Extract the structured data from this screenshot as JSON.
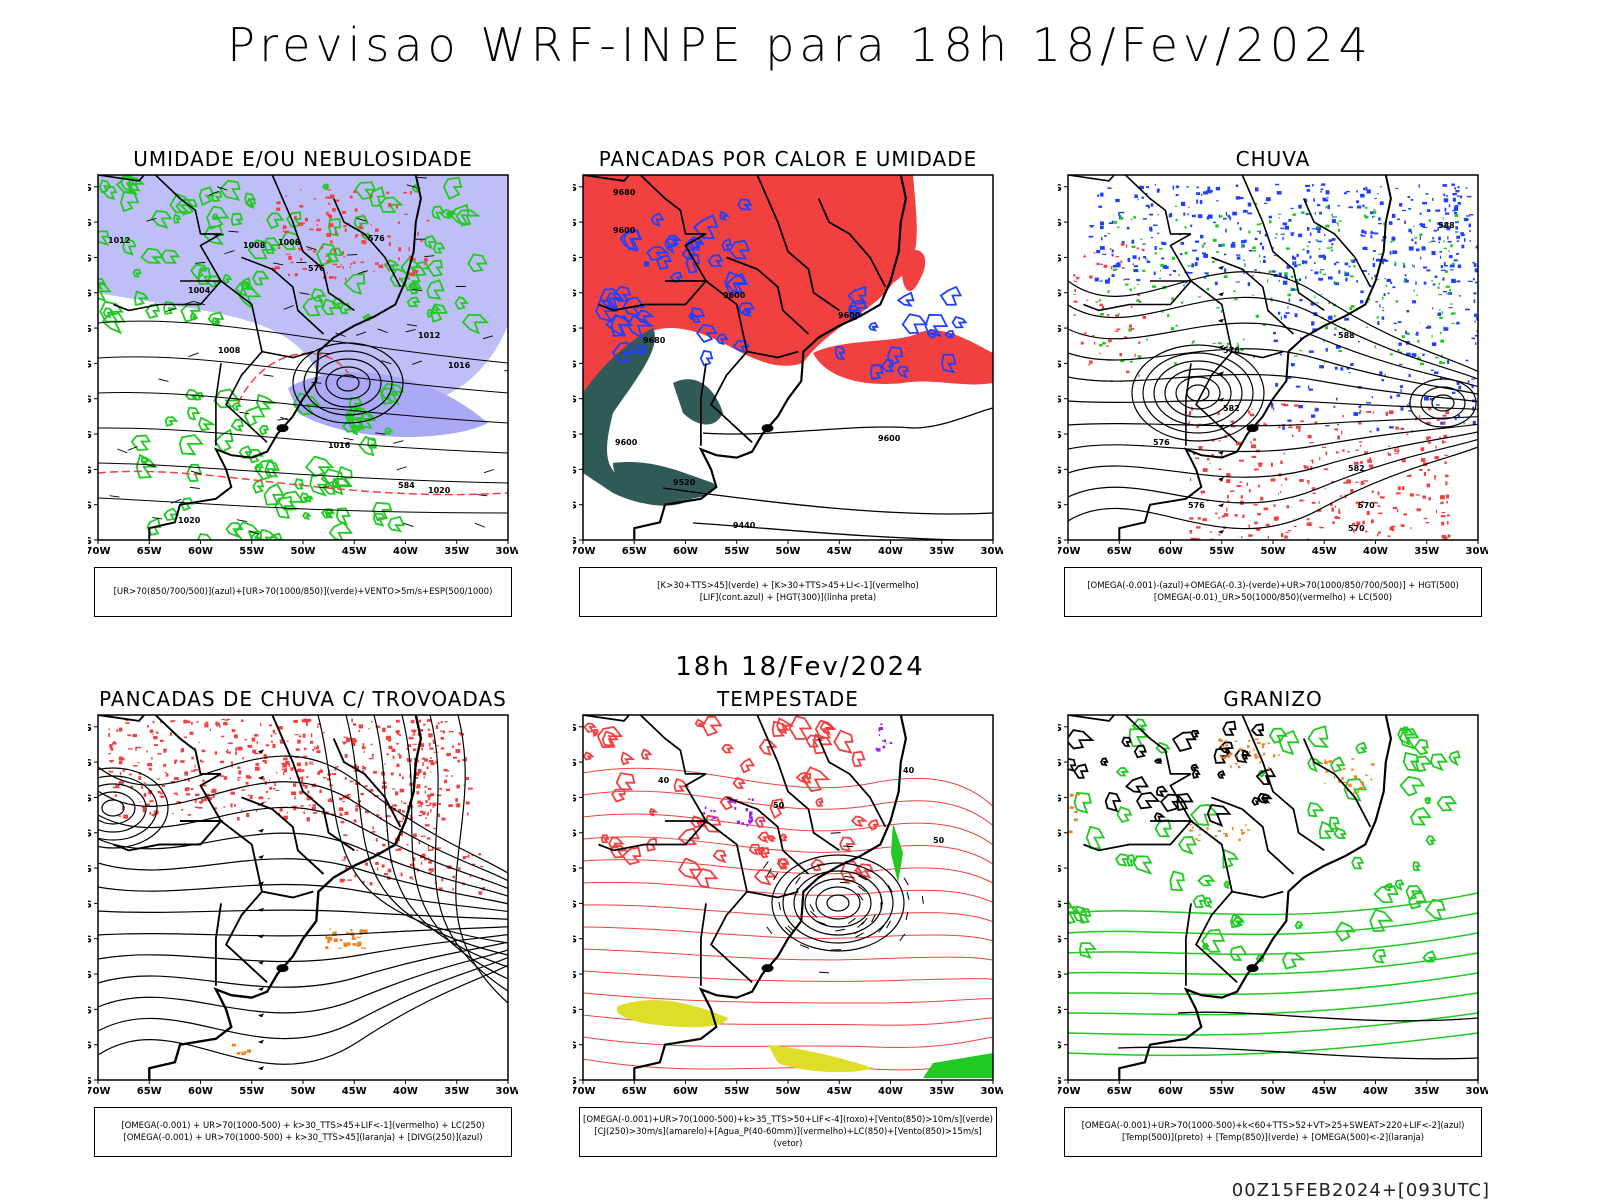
{
  "main_title": "Previsao WRF-INPE  para 18h 18/Fev/2024",
  "mid_title": "18h 18/Fev/2024",
  "footer": "00Z15FEB2024+[093UTC]",
  "lat_labels": [
    "12S",
    "15S",
    "18S",
    "21S",
    "24S",
    "27S",
    "30S",
    "33S",
    "36S",
    "39S",
    "42S"
  ],
  "lon_labels": [
    "70W",
    "65W",
    "60W",
    "55W",
    "50W",
    "45W",
    "40W",
    "35W",
    "30W"
  ],
  "panels": [
    {
      "title": "UMIDADE E/OU NEBULOSIDADE",
      "legend_lines": [
        "[UR>70(850/700/500)](azul)+[UR>70(1000/850)](verde)+VENTO>5m/s+ESP(500/1000)"
      ],
      "contour_labels": [
        "1012",
        "1008",
        "1008",
        "1004",
        "1008",
        "1012",
        "1016",
        "1016",
        "1020",
        "1020",
        "576",
        "576",
        "584"
      ]
    },
    {
      "title": "PANCADAS POR CALOR E UMIDADE",
      "legend_lines": [
        "[K>30+TTS>45](verde) + [K>30+TTS>45+LI<-1](vermelho)",
        "[LIF](cont.azul) + [HGT(300)](linha preta)"
      ],
      "contour_labels": [
        "9680",
        "9600",
        "9680",
        "9600",
        "9600",
        "9600",
        "9520",
        "9440",
        "9600"
      ]
    },
    {
      "title": "CHUVA",
      "legend_lines": [
        "[OMEGA(-0.001)-(azul)+OMEGA(-0.3)-(verde)+UR>70(1000/850/700/500)] + HGT(500)",
        "[OMEGA(-0.01)_UR>50(1000/850)(vermelho) + LC(500)"
      ],
      "contour_labels": [
        "588",
        "588",
        "576",
        "582",
        "576",
        "576",
        "570",
        "570",
        "582"
      ]
    },
    {
      "title": "PANCADAS DE CHUVA C/ TROVOADAS",
      "legend_lines": [
        "[OMEGA(-0.001) + UR>70(1000-500) + k>30_TTS>45+LIF<-1](vermelho) + LC(250)",
        "[OMEGA(-0.001) + UR>70(1000-500) + k>30_TTS>45](laranja) + [DIVG(250)](azul)"
      ],
      "contour_labels": []
    },
    {
      "title": "TEMPESTADE",
      "legend_lines": [
        "[OMEGA(-0.001)+UR>70(1000-500)+k>35_TTS>50+LIF<-4](roxo)+[Vento(850)>10m/s](verde)",
        "[CJ(250)>30m/s](amarelo)+[Agua_P(40-60mm)](vermelho)+LC(850)+[Vento(850)>15m/s](vetor)"
      ],
      "contour_labels": [
        "40",
        "50",
        "40",
        "50"
      ]
    },
    {
      "title": "GRANIZO",
      "legend_lines": [
        "[OMEGA(-0.001)+UR>70(1000-500)+k<60+TTS>52+VT>25+SWEAT>220+LIF<-2](azul)",
        "[Temp(500)](preto) + [Temp(850)](verde) + [OMEGA(500)<-2](laranja)"
      ],
      "contour_labels": []
    }
  ],
  "colors": {
    "red": "#f04040",
    "green": "#22c922",
    "blue": "#2040ff",
    "lavender": "#a9a9f5",
    "dark_teal": "#2f5a58",
    "orange": "#f08020",
    "yellow": "#dede28",
    "purple": "#a020f0",
    "black": "#000000"
  }
}
